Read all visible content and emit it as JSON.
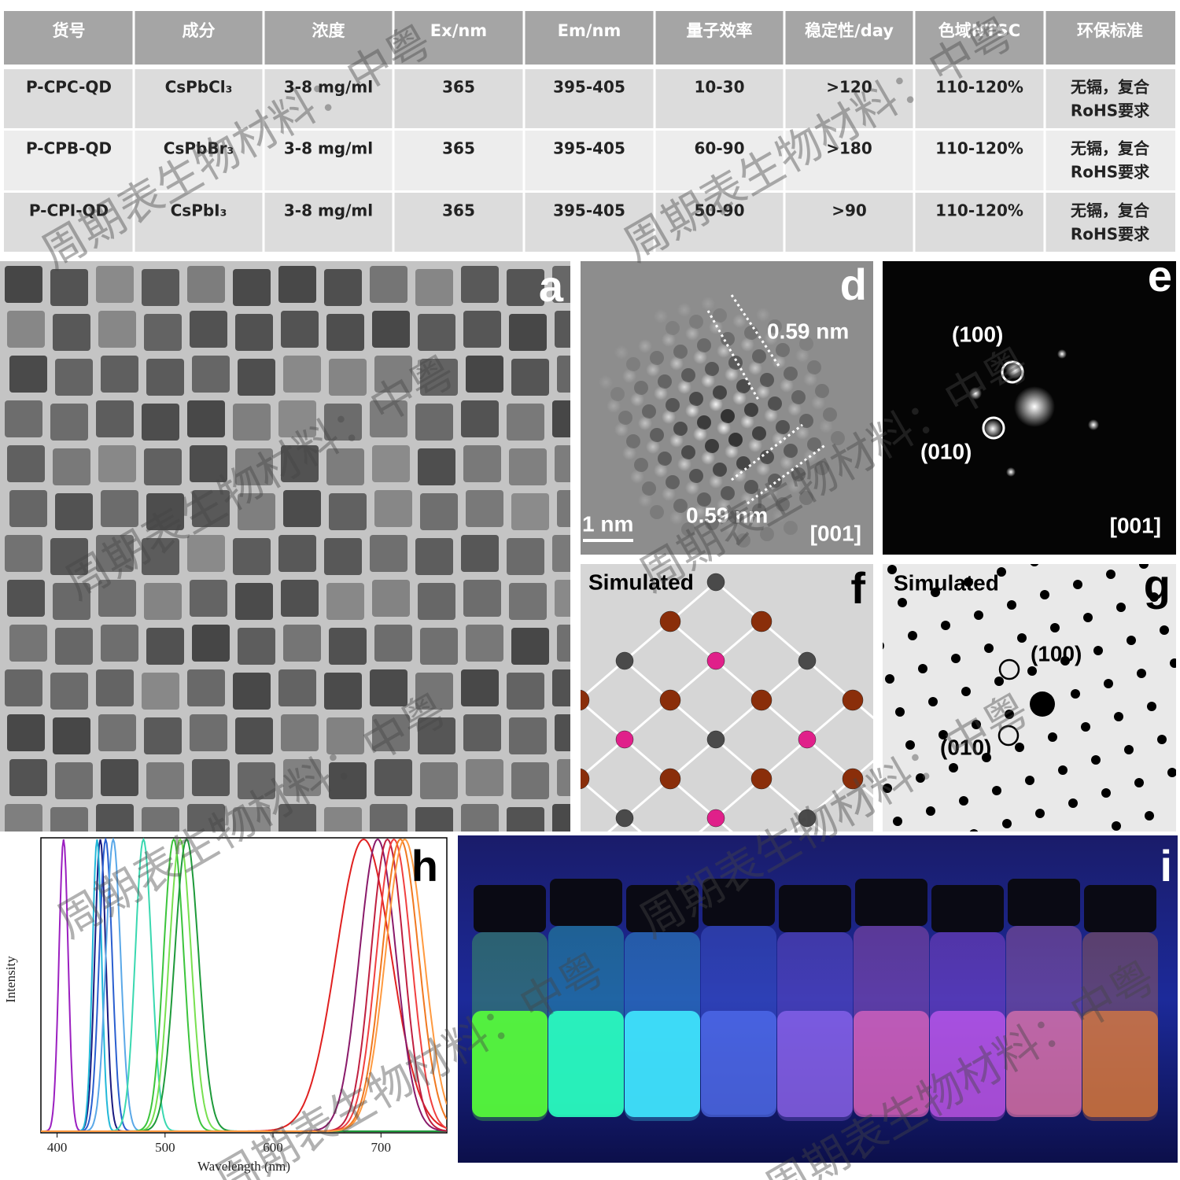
{
  "table": {
    "header": [
      "货号",
      "成分",
      "浓度",
      "Ex/nm",
      "Em/nm",
      "量子效率",
      "稳定性/day",
      "色域NTSC",
      "环保标准"
    ],
    "rows": [
      [
        "P-CPC-QD",
        "CsPbCl₃",
        "3-8 mg/ml",
        "365",
        "395-405",
        "10-30",
        ">120",
        "110-120%",
        [
          "无镉，复合",
          "RoHS要求"
        ]
      ],
      [
        "P-CPB-QD",
        "CsPbBr₃",
        "3-8 mg/ml",
        "365",
        "395-405",
        "60-90",
        ">180",
        "110-120%",
        [
          "无镉，复合",
          "RoHS要求"
        ]
      ],
      [
        "P-CPI-QD",
        "CsPbI₃",
        "3-8 mg/ml",
        "365",
        "395-405",
        "50-90",
        ">90",
        "110-120%",
        [
          "无镉，复合",
          "RoHS要求"
        ]
      ]
    ]
  },
  "panel_labels": {
    "a": "a",
    "d": "d",
    "e": "e",
    "f": "f",
    "g": "g",
    "h": "h",
    "i": "i"
  },
  "panel_d": {
    "spacing_labels": [
      "0.59 nm",
      "0.59 nm"
    ],
    "scale_bar": "1 nm",
    "zone_axis": "[001]"
  },
  "panel_e": {
    "spots": [
      "(100)",
      "(010)"
    ],
    "zone_axis": "[001]"
  },
  "panel_f": {
    "title": "Simulated"
  },
  "panel_g": {
    "title": "Simulated",
    "spots": [
      "(100)",
      "(010)"
    ]
  },
  "chart_data": {
    "type": "line",
    "ylabel": "Intensity",
    "xlabel": "Wavelength (nm)",
    "xlim": [
      385,
      761
    ],
    "xticks": [
      400,
      500,
      600,
      700
    ],
    "spectra": [
      {
        "color": "#9b1fc0",
        "peak": 406,
        "fwhm": 10
      },
      {
        "color": "#1a1a80",
        "peak": 440,
        "fwhm": 12
      },
      {
        "color": "#22b8d8",
        "peak": 437,
        "fwhm": 10
      },
      {
        "color": "#2a5fd0",
        "peak": 445,
        "fwhm": 14
      },
      {
        "color": "#5aa8e8",
        "peak": 452,
        "fwhm": 16
      },
      {
        "color": "#3ad8b0",
        "peak": 480,
        "fwhm": 18
      },
      {
        "color": "#3cc43c",
        "peak": 508,
        "fwhm": 22
      },
      {
        "color": "#78e050",
        "peak": 514,
        "fwhm": 24
      },
      {
        "color": "#1e9a3a",
        "peak": 520,
        "fwhm": 26
      },
      {
        "color": "#e02020",
        "peak": 684,
        "fwhm": 60
      },
      {
        "color": "#8a1a6a",
        "peak": 697,
        "fwhm": 40
      },
      {
        "color": "#c02040",
        "peak": 706,
        "fwhm": 36
      },
      {
        "color": "#f04040",
        "peak": 712,
        "fwhm": 38
      },
      {
        "color": "#f07820",
        "peak": 718,
        "fwhm": 40
      },
      {
        "color": "#ff9a40",
        "peak": 722,
        "fwhm": 42
      }
    ]
  },
  "watermark": "周期表生物材料：中粤"
}
